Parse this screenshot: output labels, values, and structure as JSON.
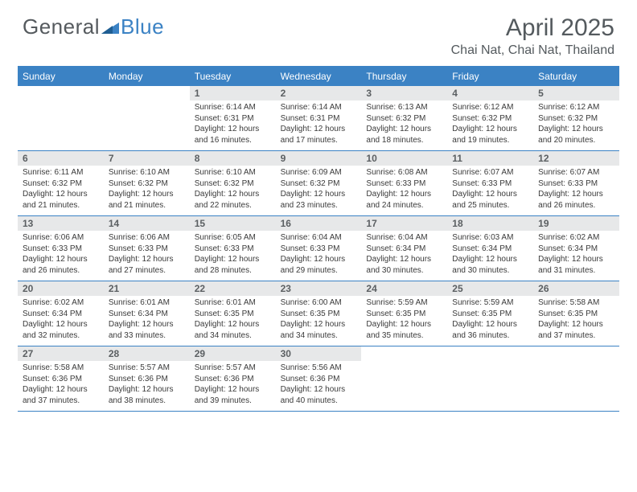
{
  "brand": {
    "part1": "General",
    "part2": "Blue"
  },
  "title": "April 2025",
  "location": "Chai Nat, Chai Nat, Thailand",
  "colors": {
    "accent": "#3b82c4",
    "dow_bg": "#3b82c4",
    "dow_text": "#ffffff",
    "daynum_bg": "#e7e8e9",
    "text": "#333333",
    "heading": "#545a5e",
    "background": "#ffffff"
  },
  "dow": [
    "Sunday",
    "Monday",
    "Tuesday",
    "Wednesday",
    "Thursday",
    "Friday",
    "Saturday"
  ],
  "grid": {
    "columns": 7,
    "rows": 5,
    "row_separator_color": "#3b82c4",
    "daynum_fontsize": 12,
    "body_fontsize": 10
  },
  "weeks": [
    [
      {
        "n": "",
        "sunrise": "",
        "sunset": "",
        "daylight": ""
      },
      {
        "n": "",
        "sunrise": "",
        "sunset": "",
        "daylight": ""
      },
      {
        "n": "1",
        "sunrise": "6:14 AM",
        "sunset": "6:31 PM",
        "daylight": "12 hours and 16 minutes."
      },
      {
        "n": "2",
        "sunrise": "6:14 AM",
        "sunset": "6:31 PM",
        "daylight": "12 hours and 17 minutes."
      },
      {
        "n": "3",
        "sunrise": "6:13 AM",
        "sunset": "6:32 PM",
        "daylight": "12 hours and 18 minutes."
      },
      {
        "n": "4",
        "sunrise": "6:12 AM",
        "sunset": "6:32 PM",
        "daylight": "12 hours and 19 minutes."
      },
      {
        "n": "5",
        "sunrise": "6:12 AM",
        "sunset": "6:32 PM",
        "daylight": "12 hours and 20 minutes."
      }
    ],
    [
      {
        "n": "6",
        "sunrise": "6:11 AM",
        "sunset": "6:32 PM",
        "daylight": "12 hours and 21 minutes."
      },
      {
        "n": "7",
        "sunrise": "6:10 AM",
        "sunset": "6:32 PM",
        "daylight": "12 hours and 21 minutes."
      },
      {
        "n": "8",
        "sunrise": "6:10 AM",
        "sunset": "6:32 PM",
        "daylight": "12 hours and 22 minutes."
      },
      {
        "n": "9",
        "sunrise": "6:09 AM",
        "sunset": "6:32 PM",
        "daylight": "12 hours and 23 minutes."
      },
      {
        "n": "10",
        "sunrise": "6:08 AM",
        "sunset": "6:33 PM",
        "daylight": "12 hours and 24 minutes."
      },
      {
        "n": "11",
        "sunrise": "6:07 AM",
        "sunset": "6:33 PM",
        "daylight": "12 hours and 25 minutes."
      },
      {
        "n": "12",
        "sunrise": "6:07 AM",
        "sunset": "6:33 PM",
        "daylight": "12 hours and 26 minutes."
      }
    ],
    [
      {
        "n": "13",
        "sunrise": "6:06 AM",
        "sunset": "6:33 PM",
        "daylight": "12 hours and 26 minutes."
      },
      {
        "n": "14",
        "sunrise": "6:06 AM",
        "sunset": "6:33 PM",
        "daylight": "12 hours and 27 minutes."
      },
      {
        "n": "15",
        "sunrise": "6:05 AM",
        "sunset": "6:33 PM",
        "daylight": "12 hours and 28 minutes."
      },
      {
        "n": "16",
        "sunrise": "6:04 AM",
        "sunset": "6:33 PM",
        "daylight": "12 hours and 29 minutes."
      },
      {
        "n": "17",
        "sunrise": "6:04 AM",
        "sunset": "6:34 PM",
        "daylight": "12 hours and 30 minutes."
      },
      {
        "n": "18",
        "sunrise": "6:03 AM",
        "sunset": "6:34 PM",
        "daylight": "12 hours and 30 minutes."
      },
      {
        "n": "19",
        "sunrise": "6:02 AM",
        "sunset": "6:34 PM",
        "daylight": "12 hours and 31 minutes."
      }
    ],
    [
      {
        "n": "20",
        "sunrise": "6:02 AM",
        "sunset": "6:34 PM",
        "daylight": "12 hours and 32 minutes."
      },
      {
        "n": "21",
        "sunrise": "6:01 AM",
        "sunset": "6:34 PM",
        "daylight": "12 hours and 33 minutes."
      },
      {
        "n": "22",
        "sunrise": "6:01 AM",
        "sunset": "6:35 PM",
        "daylight": "12 hours and 34 minutes."
      },
      {
        "n": "23",
        "sunrise": "6:00 AM",
        "sunset": "6:35 PM",
        "daylight": "12 hours and 34 minutes."
      },
      {
        "n": "24",
        "sunrise": "5:59 AM",
        "sunset": "6:35 PM",
        "daylight": "12 hours and 35 minutes."
      },
      {
        "n": "25",
        "sunrise": "5:59 AM",
        "sunset": "6:35 PM",
        "daylight": "12 hours and 36 minutes."
      },
      {
        "n": "26",
        "sunrise": "5:58 AM",
        "sunset": "6:35 PM",
        "daylight": "12 hours and 37 minutes."
      }
    ],
    [
      {
        "n": "27",
        "sunrise": "5:58 AM",
        "sunset": "6:36 PM",
        "daylight": "12 hours and 37 minutes."
      },
      {
        "n": "28",
        "sunrise": "5:57 AM",
        "sunset": "6:36 PM",
        "daylight": "12 hours and 38 minutes."
      },
      {
        "n": "29",
        "sunrise": "5:57 AM",
        "sunset": "6:36 PM",
        "daylight": "12 hours and 39 minutes."
      },
      {
        "n": "30",
        "sunrise": "5:56 AM",
        "sunset": "6:36 PM",
        "daylight": "12 hours and 40 minutes."
      },
      {
        "n": "",
        "sunrise": "",
        "sunset": "",
        "daylight": ""
      },
      {
        "n": "",
        "sunrise": "",
        "sunset": "",
        "daylight": ""
      },
      {
        "n": "",
        "sunrise": "",
        "sunset": "",
        "daylight": ""
      }
    ]
  ]
}
